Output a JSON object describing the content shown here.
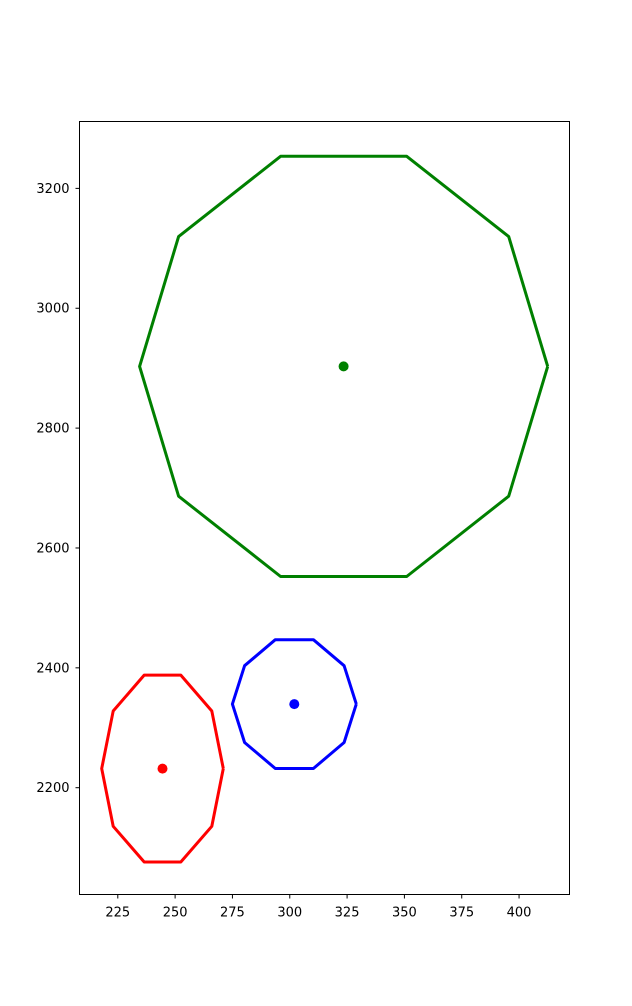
{
  "chart_data": {
    "type": "line",
    "title": "",
    "xlabel": "",
    "ylabel": "",
    "xlim": [
      208.3,
      422.0
    ],
    "ylim": [
      2021.8,
      3311.6
    ],
    "grid": false,
    "xticks": [
      "225",
      "250",
      "275",
      "300",
      "325",
      "350",
      "375",
      "400"
    ],
    "yticks": [
      "2200",
      "2400",
      "2600",
      "2800",
      "3000",
      "3200"
    ],
    "series": [
      {
        "color": "#ff0000",
        "center": [
          244.5,
          2231.8
        ],
        "x": [
          271.0,
          266.0,
          252.5,
          236.5,
          223.0,
          218.0,
          223.0,
          236.5,
          252.5,
          266.0,
          271.0
        ],
        "y": [
          2231.8,
          2328.0,
          2387.8,
          2387.8,
          2328.0,
          2231.8,
          2135.6,
          2076.0,
          2076.0,
          2135.6,
          2231.8
        ]
      },
      {
        "color": "#0000ff",
        "center": [
          302.0,
          2339.5
        ],
        "x": [
          329.0,
          323.7,
          310.3,
          293.7,
          280.3,
          275.0,
          280.3,
          293.7,
          310.3,
          323.7,
          329.0
        ],
        "y": [
          2339.5,
          2403.5,
          2447.0,
          2447.0,
          2403.5,
          2339.5,
          2275.5,
          2232.0,
          2232.0,
          2275.5,
          2339.5
        ]
      },
      {
        "color": "#008000",
        "center": [
          323.5,
          2903.0
        ],
        "x": [
          412.5,
          395.5,
          351.0,
          296.0,
          251.5,
          234.5,
          251.5,
          296.0,
          351.0,
          395.5,
          412.5
        ],
        "y": [
          2903.0,
          3119.6,
          3253.6,
          3253.6,
          3119.6,
          2903.0,
          2686.4,
          2552.4,
          2552.4,
          2686.4,
          2903.0
        ]
      }
    ]
  }
}
